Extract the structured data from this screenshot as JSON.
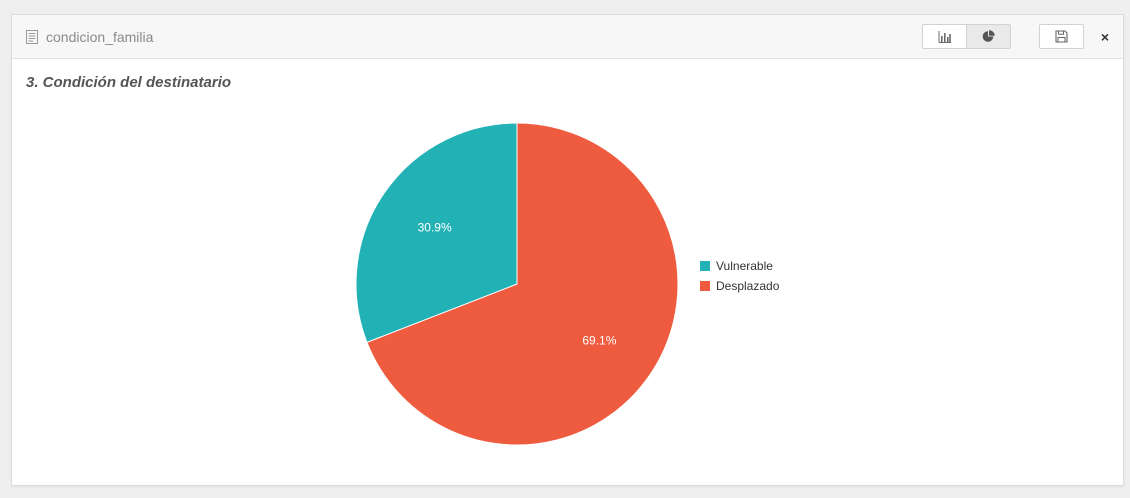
{
  "header": {
    "title": "condicion_familia",
    "icon": "document-icon",
    "buttons": {
      "bar_chart_icon": "bar-chart-icon",
      "pie_chart_icon": "pie-chart-icon",
      "save_icon": "save-icon",
      "close_label": "×"
    }
  },
  "colors": {
    "vulnerable": "#22b2b5",
    "desplazado": "#ee5b3e"
  },
  "chart_data": {
    "type": "pie",
    "title": "3. Condición del destinatario",
    "categories": [
      "Vulnerable",
      "Desplazado"
    ],
    "values": [
      30.9,
      69.1
    ],
    "labels": [
      "30.9%",
      "69.1%"
    ],
    "colors": [
      "#22b2b5",
      "#ee5b3e"
    ],
    "legend_position": "right"
  }
}
